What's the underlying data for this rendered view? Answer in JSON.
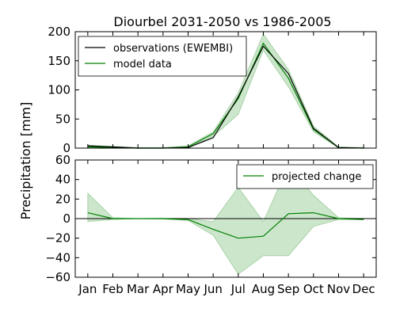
{
  "chart_data": [
    {
      "type": "line",
      "title": "Diourbel 2031-2050 vs 1986-2005",
      "ylabel": "Precipitation [mm]",
      "categories": [
        "Jan",
        "Feb",
        "Mar",
        "Apr",
        "May",
        "Jun",
        "Jul",
        "Aug",
        "Sep",
        "Oct",
        "Nov",
        "Dec"
      ],
      "ylim": [
        0,
        200
      ],
      "yticks": [
        0,
        50,
        100,
        150,
        200
      ],
      "legend_position": "top-left",
      "series": [
        {
          "name": "observations (EWEMBI)",
          "color": "#000000",
          "values": [
            4,
            2,
            0,
            0,
            1,
            18,
            88,
            175,
            128,
            34,
            1,
            0
          ]
        },
        {
          "name": "model data",
          "color": "#008000",
          "values": [
            2,
            1,
            0,
            0,
            2,
            25,
            85,
            180,
            120,
            32,
            1,
            0
          ],
          "band_low": [
            0,
            0,
            0,
            0,
            1,
            20,
            58,
            168,
            105,
            28,
            0,
            0
          ],
          "band_high": [
            5,
            3,
            1,
            1,
            4,
            28,
            95,
            196,
            135,
            38,
            2,
            1
          ]
        }
      ]
    },
    {
      "type": "line",
      "categories": [
        "Jan",
        "Feb",
        "Mar",
        "Apr",
        "May",
        "Jun",
        "Jul",
        "Aug",
        "Sep",
        "Oct",
        "Nov",
        "Dec"
      ],
      "ylim": [
        -60,
        60
      ],
      "yticks": [
        -60,
        -40,
        -20,
        0,
        20,
        40,
        60
      ],
      "legend_position": "top-right",
      "zero_line": true,
      "series": [
        {
          "name": "projected change",
          "color": "#008000",
          "values": [
            6,
            0,
            0,
            0,
            -1,
            -11,
            -20,
            -18,
            5,
            6,
            0,
            -1
          ],
          "band_low": [
            -3,
            -1,
            0,
            -0.5,
            -2,
            -17,
            -57,
            -38,
            -38,
            -8,
            -1,
            -1
          ],
          "band_high": [
            26,
            1,
            0,
            0.5,
            0,
            -3,
            32,
            -3,
            54,
            24,
            1,
            0
          ]
        }
      ]
    }
  ]
}
